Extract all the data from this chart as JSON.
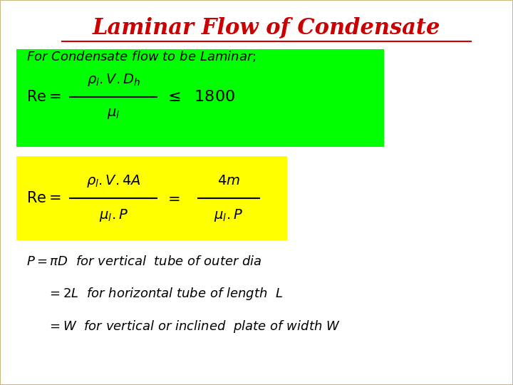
{
  "title": "Laminar Flow of Condensate",
  "title_color": "#cc0000",
  "title_fontsize": 22,
  "bg_color": "#c8b880",
  "panel_color": "#ffffff",
  "green_box_color": "#00ff00",
  "yellow_box_color": "#ffff00",
  "text_color": "#000000",
  "figsize": [
    7.2,
    5.4
  ],
  "dpi": 100
}
